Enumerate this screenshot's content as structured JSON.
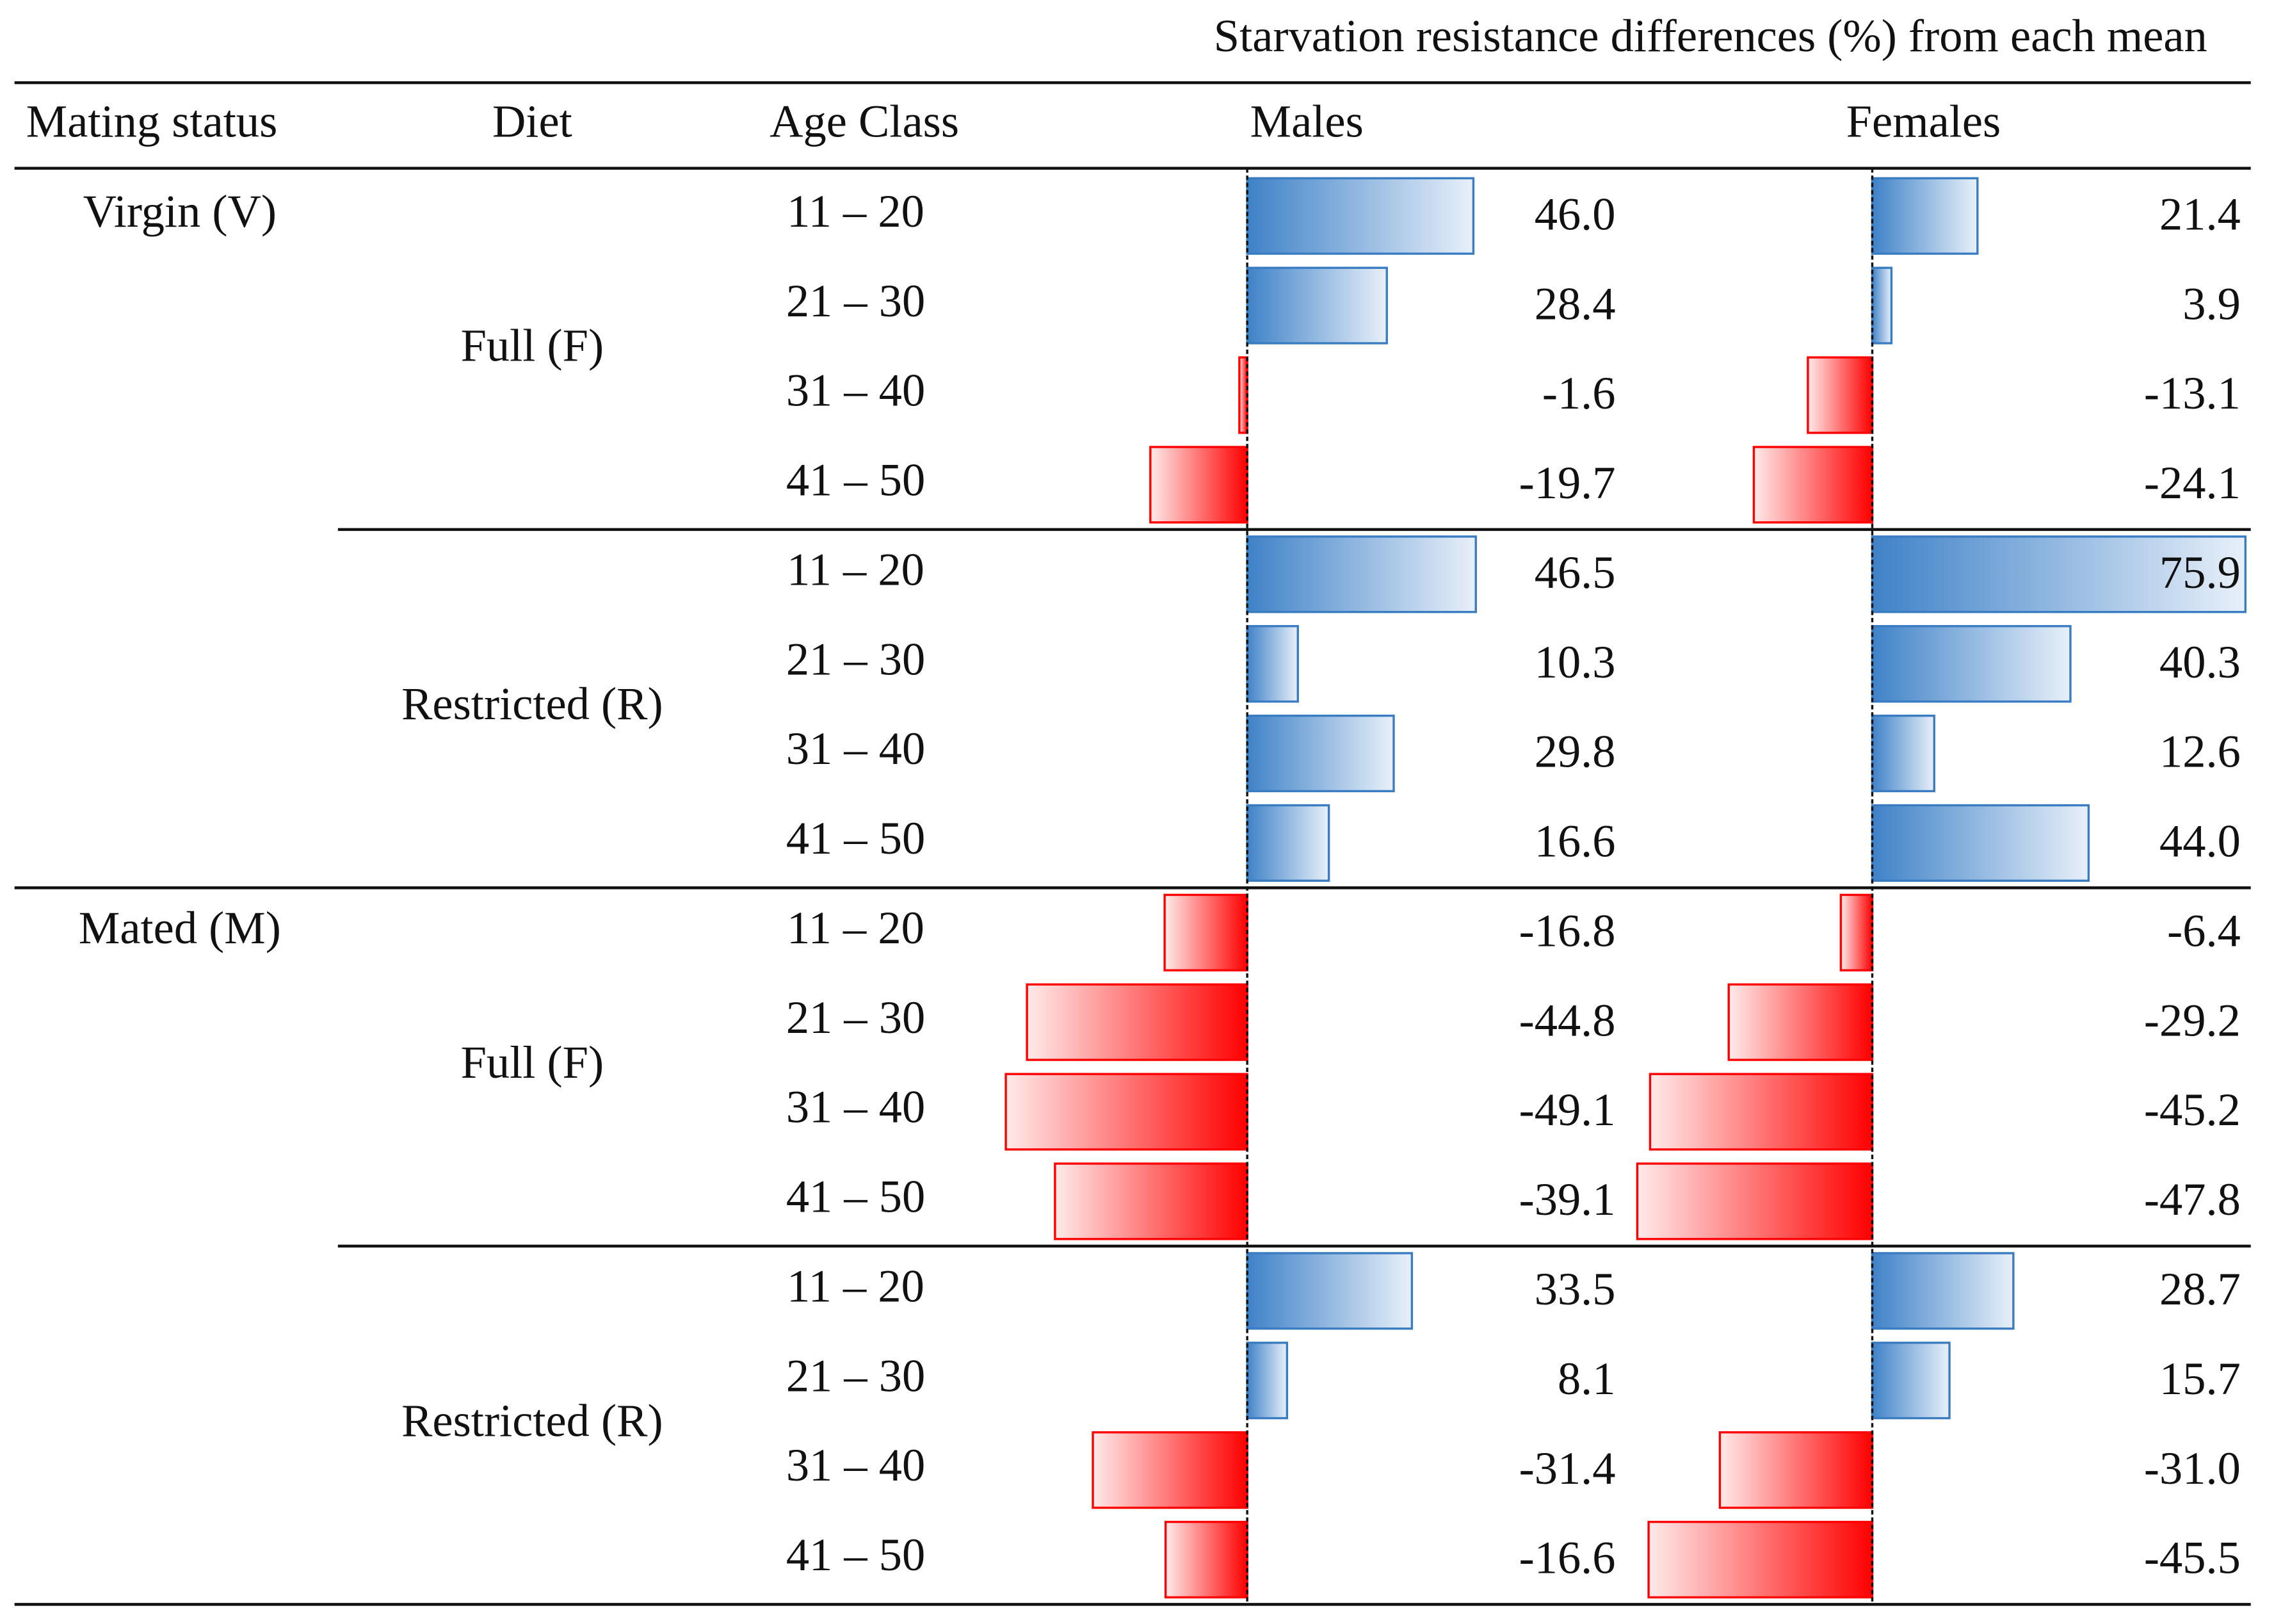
{
  "header": {
    "title": "Starvation resistance differences (%) from each mean",
    "columns": [
      "Mating status",
      "Diet",
      "Age Class",
      "Males",
      "Females"
    ]
  },
  "groups": [
    {
      "mating": "Virgin (V)",
      "diets": [
        {
          "diet": "Full (F)",
          "rows": [
            {
              "age": "11 – 20",
              "males": {
                "value": 46.0,
                "label": "46.0"
              },
              "females": {
                "value": 21.4,
                "label": "21.4"
              }
            },
            {
              "age": "21 – 30",
              "males": {
                "value": 28.4,
                "label": "28.4"
              },
              "females": {
                "value": 3.9,
                "label": "3.9"
              }
            },
            {
              "age": "31 – 40",
              "males": {
                "value": -1.6,
                "label": "-1.6"
              },
              "females": {
                "value": -13.1,
                "label": "-13.1"
              }
            },
            {
              "age": "41 – 50",
              "males": {
                "value": -19.7,
                "label": "-19.7"
              },
              "females": {
                "value": -24.1,
                "label": "-24.1"
              }
            }
          ]
        },
        {
          "diet": "Restricted (R)",
          "rows": [
            {
              "age": "11 – 20",
              "males": {
                "value": 46.5,
                "label": "46.5"
              },
              "females": {
                "value": 75.9,
                "label": "75.9"
              }
            },
            {
              "age": "21 – 30",
              "males": {
                "value": 10.3,
                "label": "10.3"
              },
              "females": {
                "value": 40.3,
                "label": "40.3"
              }
            },
            {
              "age": "31 – 40",
              "males": {
                "value": 29.8,
                "label": "29.8"
              },
              "females": {
                "value": 12.6,
                "label": "12.6"
              }
            },
            {
              "age": "41 – 50",
              "males": {
                "value": 16.6,
                "label": "16.6"
              },
              "females": {
                "value": 44.0,
                "label": "44.0"
              }
            }
          ]
        }
      ]
    },
    {
      "mating": "Mated (M)",
      "diets": [
        {
          "diet": "Full (F)",
          "rows": [
            {
              "age": "11 – 20",
              "males": {
                "value": -16.8,
                "label": "-16.8"
              },
              "females": {
                "value": -6.4,
                "label": "-6.4"
              }
            },
            {
              "age": "21 – 30",
              "males": {
                "value": -44.8,
                "label": "-44.8"
              },
              "females": {
                "value": -29.2,
                "label": "-29.2"
              }
            },
            {
              "age": "31 – 40",
              "males": {
                "value": -49.1,
                "label": "-49.1"
              },
              "females": {
                "value": -45.2,
                "label": "-45.2"
              }
            },
            {
              "age": "41 – 50",
              "males": {
                "value": -39.1,
                "label": "-39.1"
              },
              "females": {
                "value": -47.8,
                "label": "-47.8"
              }
            }
          ]
        },
        {
          "diet": "Restricted (R)",
          "rows": [
            {
              "age": "11 – 20",
              "males": {
                "value": 33.5,
                "label": "33.5"
              },
              "females": {
                "value": 28.7,
                "label": "28.7"
              }
            },
            {
              "age": "21 – 30",
              "males": {
                "value": 8.1,
                "label": "8.1"
              },
              "females": {
                "value": 15.7,
                "label": "15.7"
              }
            },
            {
              "age": "31 – 40",
              "males": {
                "value": -31.4,
                "label": "-31.4"
              },
              "females": {
                "value": -31.0,
                "label": "-31.0"
              }
            },
            {
              "age": "41 – 50",
              "males": {
                "value": -16.6,
                "label": "-16.6"
              },
              "females": {
                "value": -45.5,
                "label": "-45.5"
              }
            }
          ]
        }
      ]
    }
  ]
}
